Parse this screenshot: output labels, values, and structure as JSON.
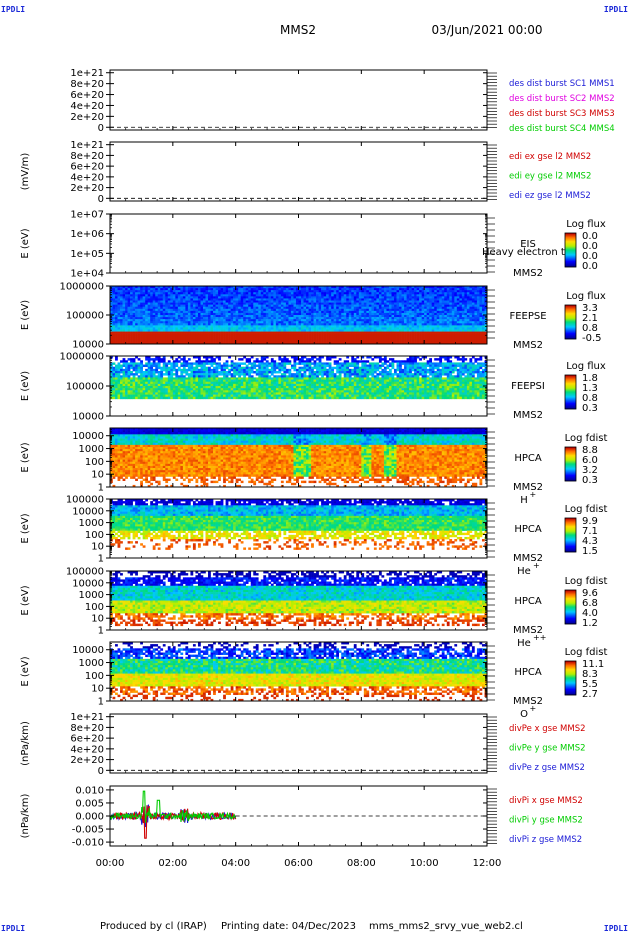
{
  "header": {
    "corner_left_top": "IPDLI",
    "corner_right_top": "IPDLI",
    "corner_left_bottom": "IPDLI",
    "corner_right_bottom": "IPDLI",
    "spacecraft": "MMS2",
    "datetime": "03/Jun/2021 00:00"
  },
  "footer": {
    "produced": "Produced by cl (IRAP)",
    "printing": "Printing date: 04/Dec/2023",
    "file": "mms_mms2_srvy_vue_web2.cl"
  },
  "colors": {
    "mms1": "#1a1ad6",
    "mms2": "#e000e0",
    "mms3": "#d00000",
    "mms4": "#00cc00",
    "x": "#d00000",
    "y": "#00cc00",
    "z": "#1a1ad6"
  },
  "chart_data": [
    {
      "type": "line",
      "id": "des",
      "ylabel": "",
      "ytick_labels": [
        "1e+21",
        "8e+20",
        "6e+20",
        "4e+20",
        "2e+20",
        "0"
      ],
      "ytick_values": [
        1e+21,
        8e+20,
        6e+20,
        4e+20,
        2e+20,
        0
      ],
      "ylim": [
        -5e+19,
        1.05e+21
      ],
      "series": [
        {
          "name": "des dist burst SC1 MMS1",
          "color": "#1a1ad6"
        },
        {
          "name": "des dist burst SC2 MMS2",
          "color": "#e000e0"
        },
        {
          "name": "des dist burst SC3 MMS3",
          "color": "#d00000"
        },
        {
          "name": "des dist burst SC4 MMS4",
          "color": "#00cc00"
        }
      ],
      "zero_line": true
    },
    {
      "type": "line",
      "id": "edi",
      "ylabel": "(mV/m)",
      "ytick_labels": [
        "1e+21",
        "8e+20",
        "6e+20",
        "4e+20",
        "2e+20",
        "0"
      ],
      "ytick_values": [
        1e+21,
        8e+20,
        6e+20,
        4e+20,
        2e+20,
        0
      ],
      "ylim": [
        -5e+19,
        1.05e+21
      ],
      "series": [
        {
          "name": "edi ex gse l2 MMS2",
          "color": "#d00000"
        },
        {
          "name": "edi ey gse l2 MMS2",
          "color": "#00cc00"
        },
        {
          "name": "edi ez gse l2 MMS2",
          "color": "#1a1ad6"
        }
      ],
      "zero_line": true
    },
    {
      "type": "heatmap",
      "id": "eis",
      "ylabel": "E (eV)",
      "scale": "log",
      "ytick_labels": [
        "1e+07",
        "1e+06",
        "1e+05",
        "1e+04"
      ],
      "ytick_values": [
        10000000.0,
        1000000.0,
        100000.0,
        10000.0
      ],
      "ylim": [
        10000.0,
        10000000.0
      ],
      "instrument": [
        "EIS",
        "MMS2"
      ],
      "overlay_text": "Heavy electron to",
      "colorbar_title": "Log flux",
      "colorbar_labels": [
        "0.0",
        "0.0",
        "0.0",
        "0.0"
      ],
      "empty": true
    },
    {
      "type": "heatmap",
      "id": "feepse",
      "ylabel": "E (eV)",
      "scale": "log",
      "ytick_labels": [
        "1000000",
        "100000",
        "10000"
      ],
      "ytick_values": [
        1000000.0,
        100000.0,
        10000.0
      ],
      "ylim": [
        10000.0,
        1000000.0
      ],
      "instrument": [
        "FEEPSE",
        "MMS2"
      ],
      "colorbar_title": "Log flux",
      "colorbar_labels": [
        "3.3",
        "2.1",
        "0.8",
        "-0.5"
      ],
      "pattern": "feepse"
    },
    {
      "type": "heatmap",
      "id": "feepsi",
      "ylabel": "E (eV)",
      "scale": "log",
      "ytick_labels": [
        "1000000",
        "100000",
        "10000"
      ],
      "ytick_values": [
        1000000.0,
        100000.0,
        10000.0
      ],
      "ylim": [
        10000.0,
        1000000.0
      ],
      "instrument": [
        "FEEPSI",
        "MMS2"
      ],
      "colorbar_title": "Log flux",
      "colorbar_labels": [
        "1.8",
        "1.3",
        "0.8",
        "0.3"
      ],
      "pattern": "feepsi"
    },
    {
      "type": "heatmap",
      "id": "hpca_h",
      "ylabel": "E (eV)",
      "scale": "log",
      "ytick_labels": [
        "10000",
        "1000",
        "100",
        "10",
        "1"
      ],
      "ytick_values": [
        10000.0,
        1000.0,
        100.0,
        10,
        1
      ],
      "ylim": [
        1,
        40000
      ],
      "instrument": [
        "HPCA",
        "MMS2"
      ],
      "species": "H",
      "species_sup": "+",
      "colorbar_title": "Log fdist",
      "colorbar_labels": [
        "8.8",
        "6.0",
        "3.2",
        "0.3"
      ],
      "pattern": "hplus"
    },
    {
      "type": "heatmap",
      "id": "hpca_he",
      "ylabel": "E (eV)",
      "scale": "log",
      "ytick_labels": [
        "100000",
        "10000",
        "1000",
        "100",
        "10",
        "1"
      ],
      "ytick_values": [
        100000.0,
        10000.0,
        1000.0,
        100.0,
        10,
        1
      ],
      "ylim": [
        1,
        100000.0
      ],
      "instrument": [
        "HPCA",
        "MMS2"
      ],
      "species": "He",
      "species_sup": "+",
      "colorbar_title": "Log fdist",
      "colorbar_labels": [
        "9.9",
        "7.1",
        "4.3",
        "1.5"
      ],
      "pattern": "heplus"
    },
    {
      "type": "heatmap",
      "id": "hpca_hepp",
      "ylabel": "E (eV)",
      "scale": "log",
      "ytick_labels": [
        "100000",
        "10000",
        "1000",
        "100",
        "10",
        "1"
      ],
      "ytick_values": [
        100000.0,
        10000.0,
        1000.0,
        100.0,
        10,
        1
      ],
      "ylim": [
        1,
        100000.0
      ],
      "instrument": [
        "HPCA",
        "MMS2"
      ],
      "species": "He",
      "species_sup": "++",
      "colorbar_title": "Log fdist",
      "colorbar_labels": [
        "9.6",
        "6.8",
        "4.0",
        "1.2"
      ],
      "pattern": "hepp"
    },
    {
      "type": "heatmap",
      "id": "hpca_o",
      "ylabel": "E (eV)",
      "scale": "log",
      "ytick_labels": [
        "10000",
        "1000",
        "100",
        "10",
        "1"
      ],
      "ytick_values": [
        10000.0,
        1000.0,
        100.0,
        10,
        1
      ],
      "ylim": [
        1,
        40000
      ],
      "instrument": [
        "HPCA",
        "MMS2"
      ],
      "species": "O",
      "species_sup": "+",
      "colorbar_title": "Log fdist",
      "colorbar_labels": [
        "11.1",
        "8.3",
        "5.5",
        "2.7"
      ],
      "pattern": "oplus"
    },
    {
      "type": "line",
      "id": "divpe",
      "ylabel": "(nPa/km)",
      "ytick_labels": [
        "1e+21",
        "8e+20",
        "6e+20",
        "4e+20",
        "2e+20",
        "0"
      ],
      "ytick_values": [
        1e+21,
        8e+20,
        6e+20,
        4e+20,
        2e+20,
        0
      ],
      "ylim": [
        -5e+19,
        1.05e+21
      ],
      "series": [
        {
          "name": "divPe x gse MMS2",
          "color": "#d00000"
        },
        {
          "name": "divPe y gse MMS2",
          "color": "#00cc00"
        },
        {
          "name": "divPe z gse MMS2",
          "color": "#1a1ad6"
        }
      ],
      "zero_line": true
    },
    {
      "type": "line",
      "id": "divpi",
      "ylabel": "(nPa/km)",
      "ytick_labels": [
        "0.010",
        "0.005",
        "0.000",
        "-0.005",
        "-0.010"
      ],
      "ytick_values": [
        0.01,
        0.005,
        0.0,
        -0.005,
        -0.01
      ],
      "ylim": [
        -0.0115,
        0.0115
      ],
      "series": [
        {
          "name": "divPi x gse MMS2",
          "color": "#d00000"
        },
        {
          "name": "divPi y gse MMS2",
          "color": "#00cc00"
        },
        {
          "name": "divPi z gse MMS2",
          "color": "#1a1ad6"
        }
      ],
      "zero_line": true,
      "data_end_hour": 4.0
    }
  ],
  "time_axis": {
    "tick_labels": [
      "00:00",
      "02:00",
      "04:00",
      "06:00",
      "08:00",
      "10:00",
      "12:00"
    ],
    "tick_hours": [
      0,
      2,
      4,
      6,
      8,
      10,
      12
    ],
    "xlim_hours": [
      0,
      12
    ]
  }
}
